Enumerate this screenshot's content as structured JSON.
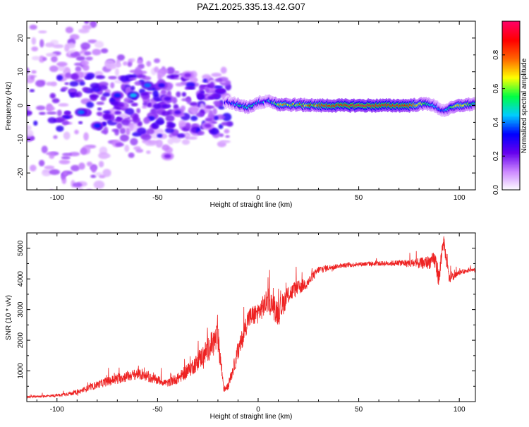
{
  "title": "PAZ1.2025.335.13.42.G07",
  "chart_data": [
    {
      "type": "heatmap",
      "xlabel": "Height of straight line (km)",
      "ylabel": "Frequency (Hz)",
      "xlim": [
        -115,
        108
      ],
      "ylim": [
        -25,
        25
      ],
      "xticks": [
        -100,
        -50,
        0,
        50,
        100
      ],
      "yticks": [
        -20,
        -10,
        0,
        10,
        20
      ],
      "colorbar": {
        "label": "Normalized spectral amplitude",
        "range": [
          0,
          1
        ],
        "ticks": [
          "0.0",
          "0.2",
          "0.4",
          "0.6",
          "0.8"
        ],
        "tick_values": [
          0.0,
          0.2,
          0.4,
          0.6,
          0.8
        ],
        "colormap": [
          "#ffffff",
          "#cc88ff",
          "#6600ee",
          "#0000ff",
          "#00ccff",
          "#00ff44",
          "#ffff00",
          "#ff6600",
          "#ff0000",
          "#ff0066"
        ]
      },
      "ridge": [
        {
          "x": -15,
          "y": 1.0,
          "amp": 0.3
        },
        {
          "x": -10,
          "y": 0.3,
          "amp": 0.45
        },
        {
          "x": -5,
          "y": -0.5,
          "amp": 0.55
        },
        {
          "x": 0,
          "y": 0.8,
          "amp": 0.45
        },
        {
          "x": 5,
          "y": 1.5,
          "amp": 0.4
        },
        {
          "x": 10,
          "y": 0.3,
          "amp": 0.7
        },
        {
          "x": 20,
          "y": 0.2,
          "amp": 0.75
        },
        {
          "x": 30,
          "y": 0.0,
          "amp": 0.85
        },
        {
          "x": 50,
          "y": 0.0,
          "amp": 0.95
        },
        {
          "x": 75,
          "y": 0.0,
          "amp": 0.9
        },
        {
          "x": 85,
          "y": 0.6,
          "amp": 0.5
        },
        {
          "x": 92,
          "y": -1.5,
          "amp": 0.35
        },
        {
          "x": 100,
          "y": 0.0,
          "amp": 0.75
        },
        {
          "x": 108,
          "y": 0.5,
          "amp": 0.5
        }
      ],
      "blobs": [
        {
          "x": -88,
          "y": -2,
          "amp": 0.4
        },
        {
          "x": -80,
          "y": -6,
          "amp": 0.35
        },
        {
          "x": -70,
          "y": 3,
          "amp": 0.35
        },
        {
          "x": -62,
          "y": 3,
          "amp": 0.45
        },
        {
          "x": -55,
          "y": 6,
          "amp": 0.4
        },
        {
          "x": -48,
          "y": 6,
          "amp": 0.3
        },
        {
          "x": -45,
          "y": 2,
          "amp": 0.25
        },
        {
          "x": -40,
          "y": -2,
          "amp": 0.25
        },
        {
          "x": -35,
          "y": 9,
          "amp": 0.2
        },
        {
          "x": -45,
          "y": -15,
          "amp": 0.2
        },
        {
          "x": -25,
          "y": -6,
          "amp": 0.2
        }
      ]
    },
    {
      "type": "line",
      "xlabel": "Height of straight line (km)",
      "ylabel": "SNR (10 * v/v)",
      "xlim": [
        -115,
        108
      ],
      "ylim": [
        0,
        5500
      ],
      "xticks": [
        -100,
        -50,
        0,
        50,
        100
      ],
      "yticks": [
        1000,
        2000,
        3000,
        4000,
        5000
      ],
      "series": [
        {
          "name": "SNR",
          "color": "#ee2222",
          "x": [
            -115,
            -100,
            -90,
            -80,
            -70,
            -60,
            -50,
            -45,
            -40,
            -35,
            -30,
            -25,
            -20,
            -17,
            -15,
            -10,
            -5,
            0,
            5,
            10,
            15,
            20,
            25,
            30,
            40,
            50,
            60,
            70,
            80,
            85,
            88,
            90,
            92,
            95,
            100,
            105,
            108
          ],
          "y": [
            150,
            200,
            300,
            550,
            750,
            900,
            700,
            600,
            750,
            1000,
            1300,
            1700,
            2100,
            400,
            500,
            1600,
            2700,
            2900,
            3300,
            2900,
            3500,
            3700,
            3900,
            4300,
            4420,
            4480,
            4500,
            4520,
            4500,
            4550,
            4600,
            4000,
            5300,
            4000,
            4200,
            4300,
            4280
          ],
          "noise": [
            60,
            90,
            150,
            250,
            350,
            350,
            300,
            250,
            350,
            500,
            600,
            800,
            1000,
            200,
            250,
            600,
            700,
            700,
            800,
            900,
            600,
            500,
            350,
            250,
            150,
            150,
            150,
            200,
            350,
            450,
            600,
            700,
            500,
            300,
            150,
            150,
            120
          ]
        }
      ]
    }
  ]
}
